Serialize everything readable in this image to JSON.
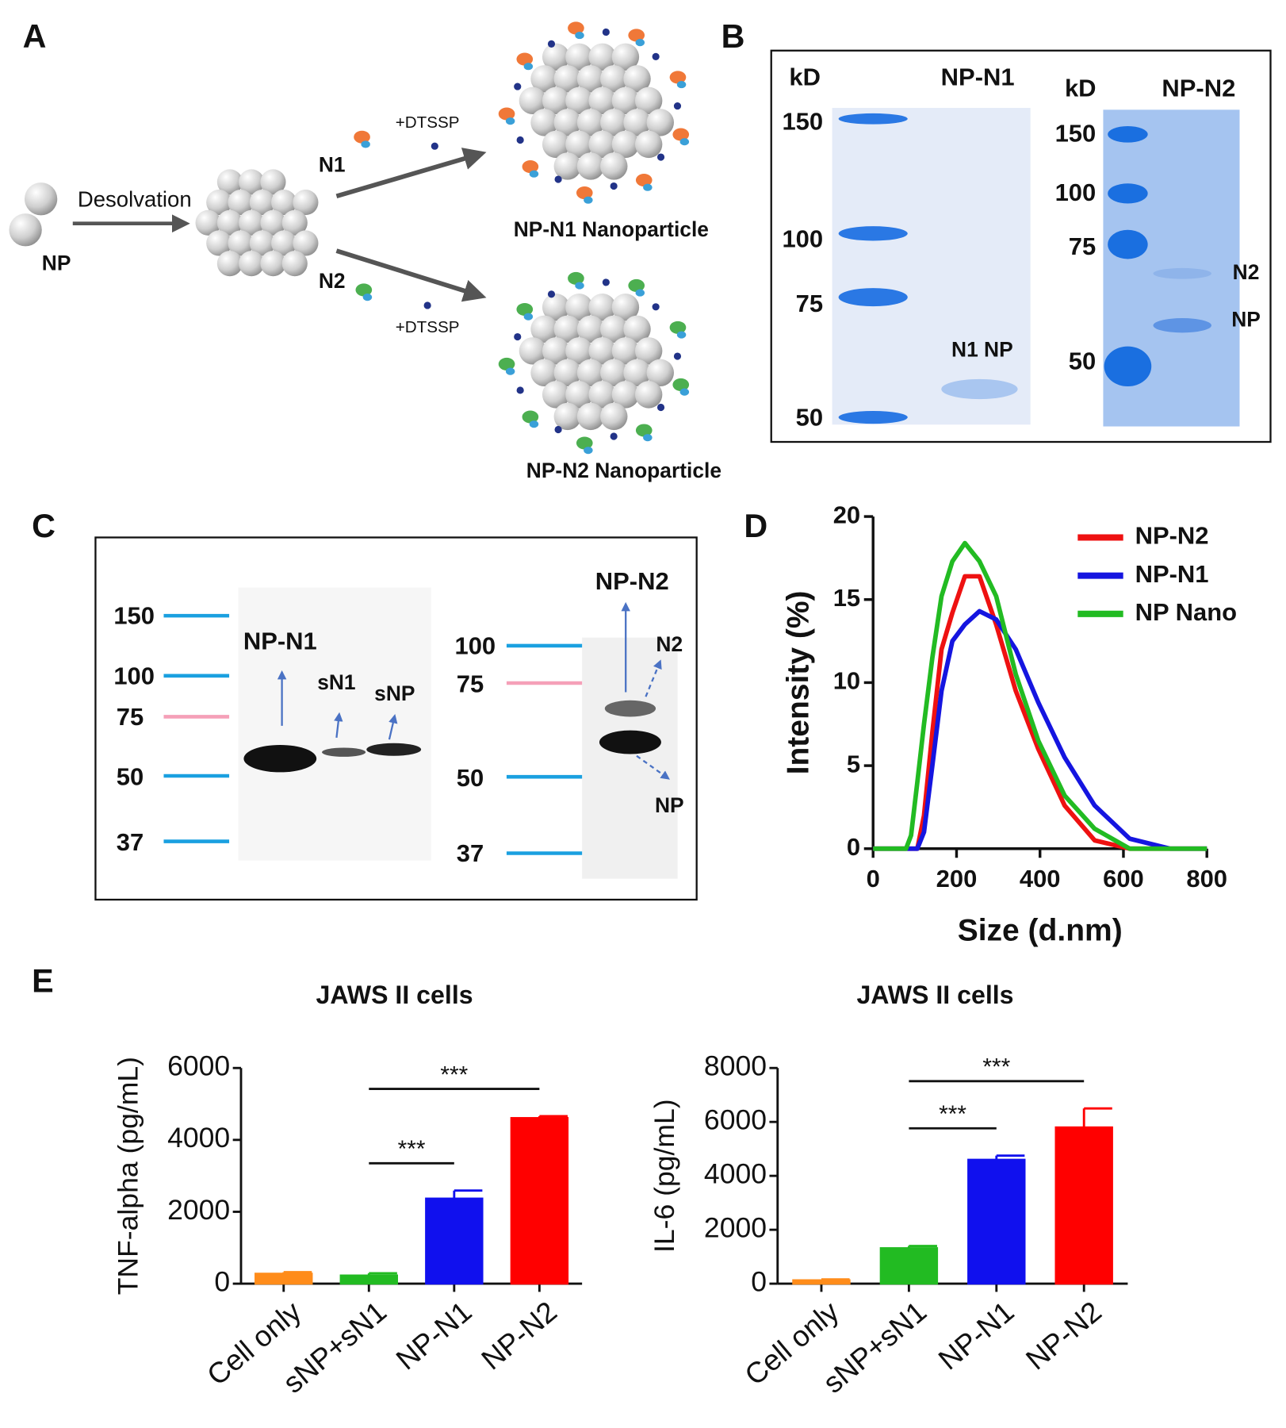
{
  "panel_labels": [
    "A",
    "B",
    "C",
    "D",
    "E"
  ],
  "schematic": {
    "np": "NP",
    "desolvation": "Desolvation",
    "n1": "N1",
    "n2": "N2",
    "dtssp": [
      "+DTSSP",
      "+DTSSP"
    ],
    "products": [
      "NP-N1 Nanoparticle",
      "NP-N2 Nanoparticle"
    ]
  },
  "gel": {
    "left": {
      "unit": "kD",
      "lane": "NP-N1",
      "markers": [
        "150",
        "100",
        "75",
        "50"
      ],
      "band": "N1 NP"
    },
    "right": {
      "unit": "kD",
      "lane": "NP-N2",
      "markers": [
        "150",
        "100",
        "75",
        "50"
      ],
      "bands": [
        "N2",
        "NP"
      ]
    }
  },
  "blot": {
    "left": {
      "markers": [
        "150",
        "100",
        "75",
        "50",
        "37"
      ],
      "lanes": [
        "NP-N1",
        "sN1",
        "sNP"
      ]
    },
    "right": {
      "markers": [
        "100",
        "75",
        "50",
        "37"
      ],
      "lane": "NP-N2",
      "bands": [
        "N2",
        "NP"
      ]
    }
  },
  "chart_data": [
    {
      "type": "line",
      "x_label": "Size (d.nm)",
      "y_label": "Intensity (%)",
      "x": [
        0,
        68,
        79,
        91,
        106,
        122,
        142,
        164,
        190,
        220,
        255,
        295,
        342,
        396,
        459,
        531,
        615,
        712,
        800
      ],
      "series": [
        {
          "name": "NP-N2",
          "color": "#ee1111",
          "values": [
            0,
            0,
            0,
            0,
            0,
            2,
            7,
            12,
            14.2,
            16.4,
            16.4,
            13.5,
            9.5,
            6,
            2.6,
            0.5,
            0,
            0,
            0
          ]
        },
        {
          "name": "NP-N1",
          "color": "#1515e0",
          "values": [
            0,
            0,
            0,
            0,
            0,
            1,
            5,
            9.5,
            12.5,
            13.5,
            14.3,
            13.8,
            12,
            8.8,
            5.5,
            2.6,
            0.6,
            0,
            0
          ]
        },
        {
          "name": "NP Nano",
          "color": "#22bb22",
          "values": [
            0,
            0,
            0,
            0.8,
            4,
            7.5,
            11.5,
            15.2,
            17.3,
            18.4,
            17.3,
            15.2,
            10.5,
            6.5,
            3.2,
            1.2,
            0,
            0,
            0
          ]
        }
      ],
      "xlim": [
        0,
        800
      ],
      "ylim": [
        0,
        20
      ],
      "xticks": [
        0,
        200,
        400,
        600,
        800
      ],
      "yticks": [
        0,
        5,
        10,
        15,
        20
      ],
      "legend": "upper right"
    },
    {
      "type": "bar",
      "title": "JAWS II cells",
      "y_label": "TNF-alpha (pg/mL)",
      "categories": [
        "Cell only",
        "sNP+sN1",
        "NP-N1",
        "NP-N2"
      ],
      "values": [
        280,
        230,
        2370,
        4610
      ],
      "errors": [
        40,
        60,
        220,
        50
      ],
      "colors": [
        "#ff8c1a",
        "#22bb22",
        "#1010ee",
        "#ff0000"
      ],
      "ylim": [
        0,
        6000
      ],
      "yticks": [
        0,
        2000,
        4000,
        6000
      ],
      "comparisons": [
        {
          "from": 1,
          "to": 2,
          "label": "***"
        },
        {
          "from": 1,
          "to": 3,
          "label": "***"
        }
      ]
    },
    {
      "type": "bar",
      "title": "JAWS II cells",
      "y_label": "IL-6 (pg/mL)",
      "categories": [
        "Cell only",
        "sNP+sN1",
        "NP-N1",
        "NP-N2"
      ],
      "values": [
        130,
        1320,
        4600,
        5800
      ],
      "errors": [
        30,
        80,
        150,
        700
      ],
      "colors": [
        "#ff8c1a",
        "#22bb22",
        "#1010ee",
        "#ff0000"
      ],
      "ylim": [
        0,
        8000
      ],
      "yticks": [
        0,
        2000,
        4000,
        6000,
        8000
      ],
      "comparisons": [
        {
          "from": 1,
          "to": 2,
          "label": "***"
        },
        {
          "from": 1,
          "to": 3,
          "label": "***"
        }
      ]
    }
  ]
}
